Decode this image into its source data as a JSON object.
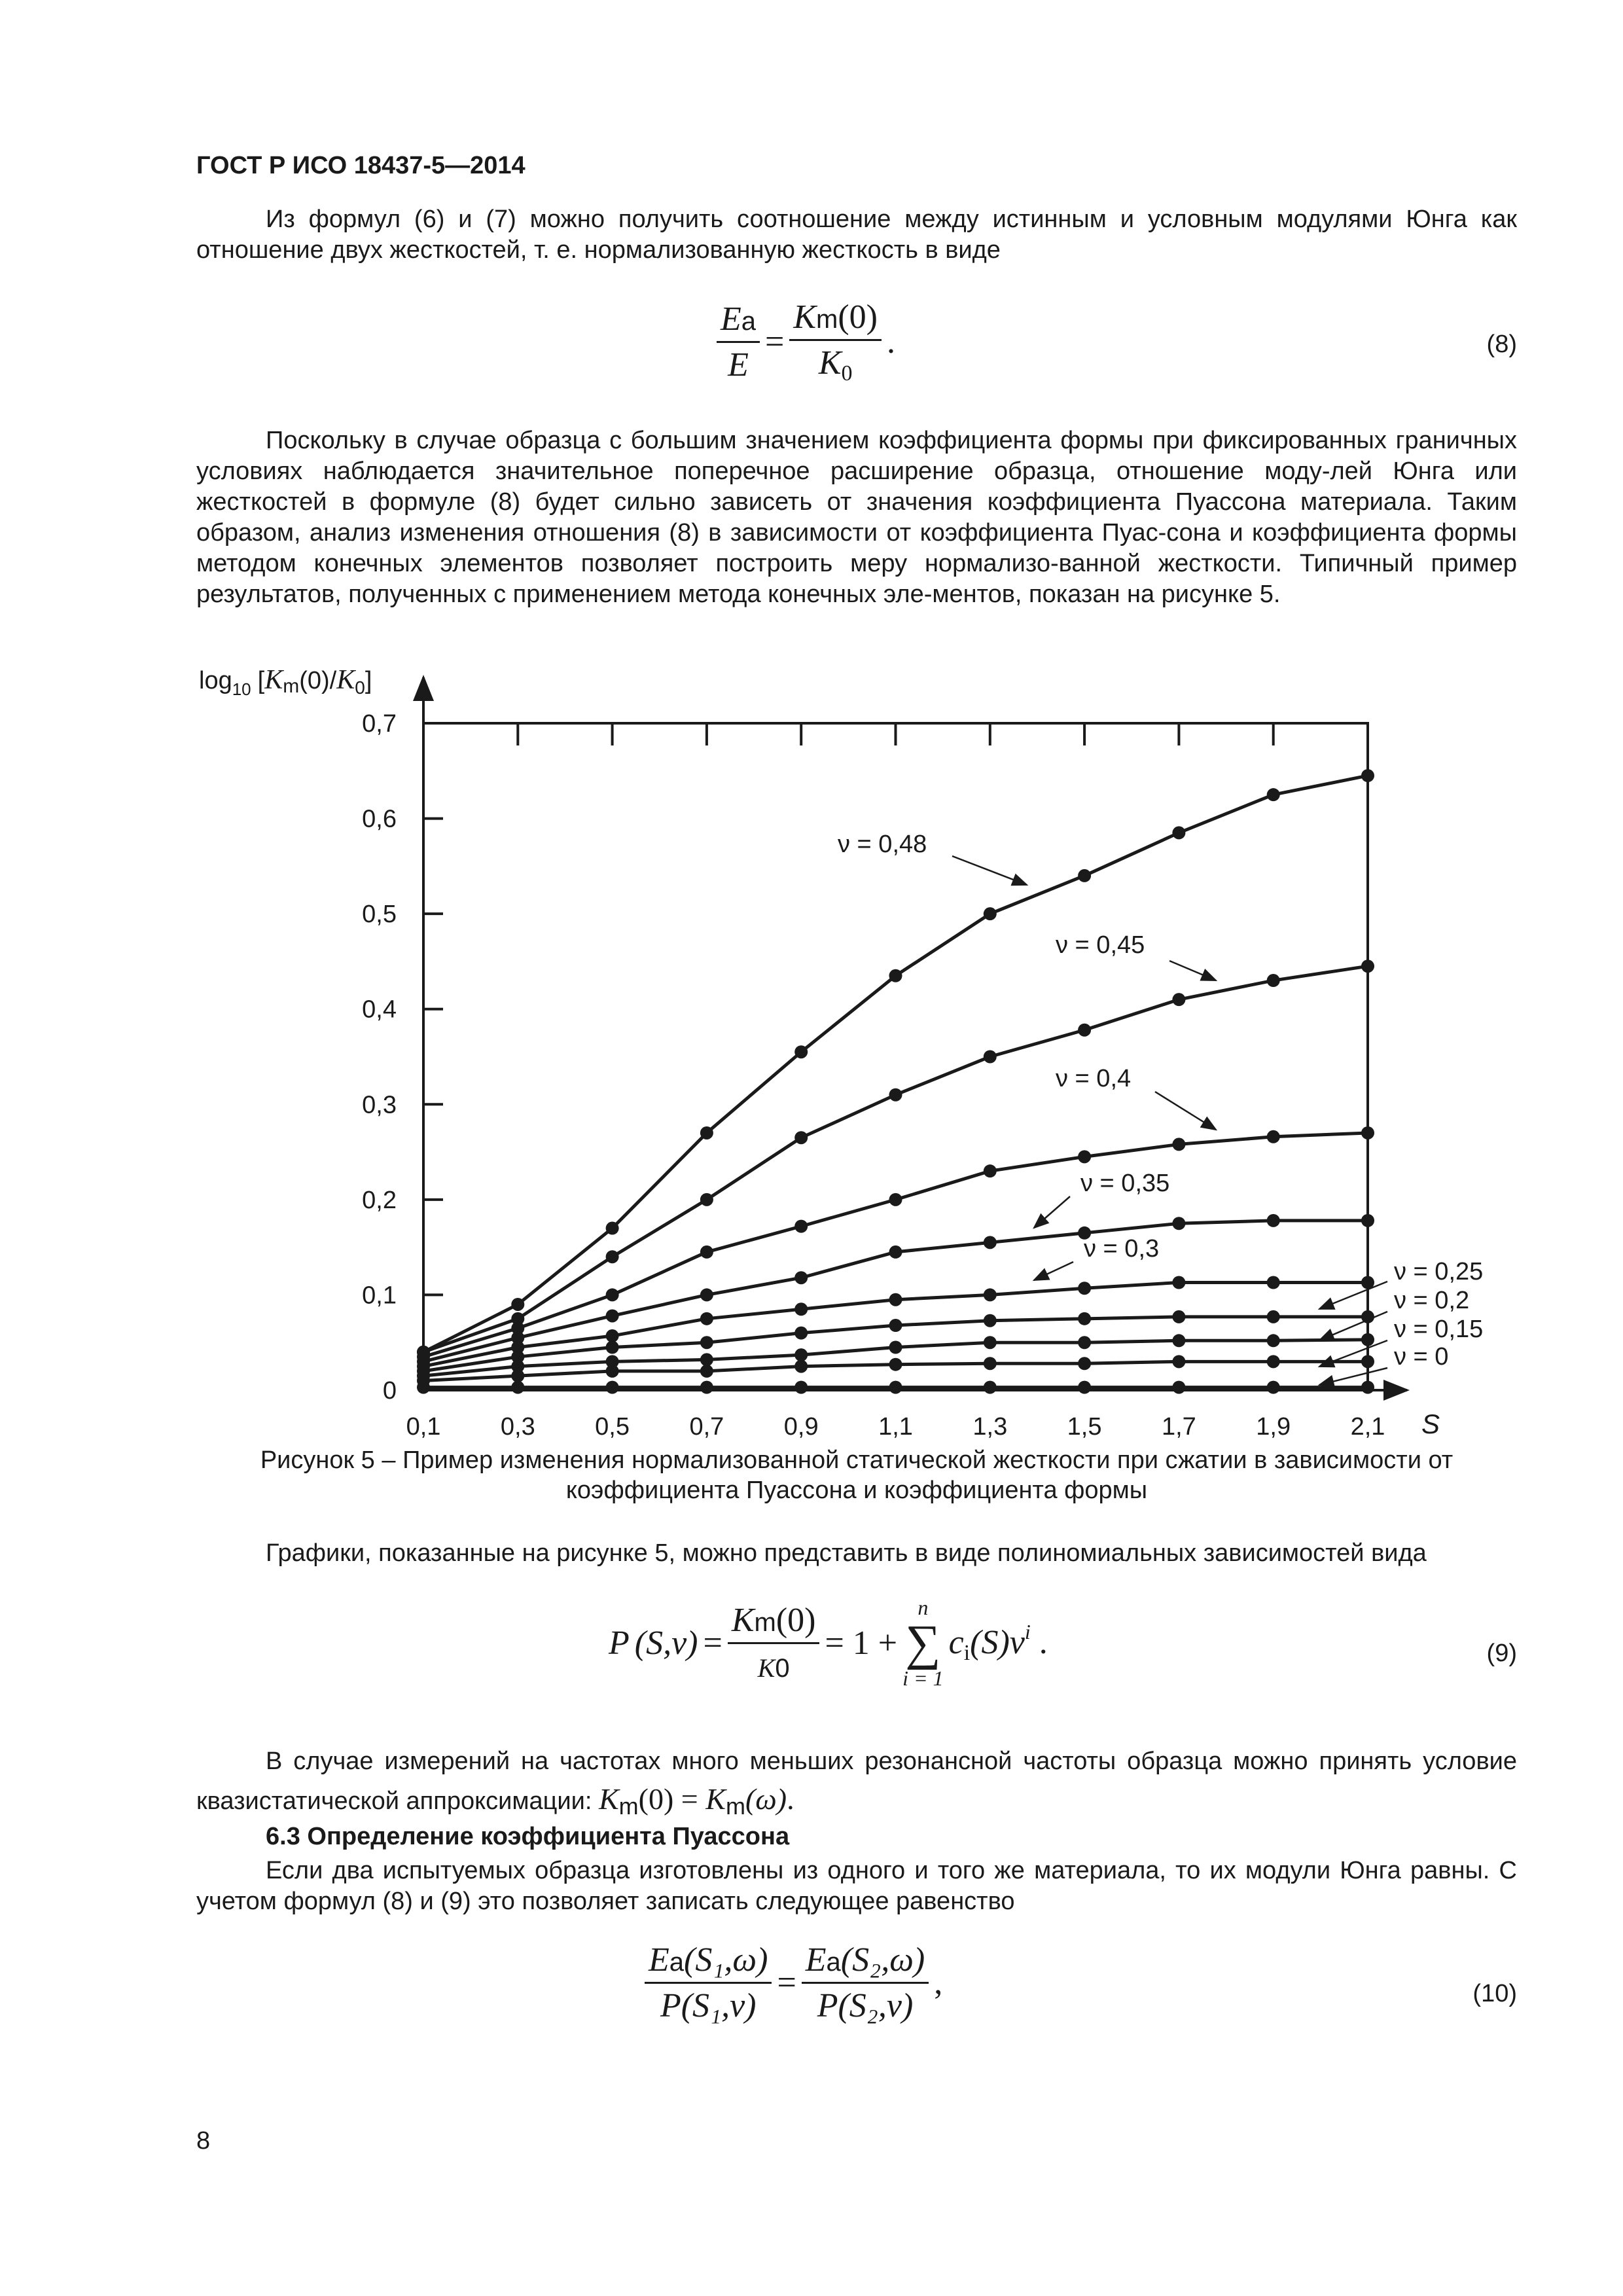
{
  "header": {
    "title": "ГОСТ Р ИСО 18437-5—2014"
  },
  "para1": "Из формул (6) и (7) можно получить соотношение между истинным и условным модулями Юнга как отношение двух жесткостей, т. е. нормализованную жесткость в виде",
  "formula8": {
    "lhs_num": "E",
    "lhs_num_sub": "a",
    "lhs_den": "E",
    "eq": "=",
    "rhs_num": "K",
    "rhs_num_sub": "m",
    "rhs_num_arg": "(0)",
    "rhs_den": "K",
    "rhs_den_sub": "0",
    "end": ".",
    "number": "(8)"
  },
  "para2": "Поскольку в случае образца с большим значением коэффициента формы при фиксированных граничных условиях наблюдается значительное поперечное расширение образца, отношение моду-лей Юнга или жесткостей в формуле (8) будет сильно зависеть от значения коэффициента Пуассона материала. Таким образом, анализ изменения отношения (8) в зависимости от коэффициента Пуас-сона и коэффициента формы методом конечных элементов позволяет построить меру нормализо-ванной жесткости. Типичный пример результатов, полученных с применением метода конечных эле-ментов, показан на рисунке 5.",
  "chart_data": {
    "type": "line",
    "ylabel": "log10 [Km(0)/K0]",
    "ylabel_parts": {
      "log": "log",
      "base": "10",
      "open": "[",
      "K": "K",
      "m": "m",
      "arg": "(0)/",
      "K2": "K",
      "zero": "0",
      "close": "]"
    },
    "xlabel": "S",
    "xlim": [
      0.1,
      2.1
    ],
    "ylim": [
      0,
      0.7
    ],
    "x": [
      0.1,
      0.3,
      0.5,
      0.7,
      0.9,
      1.1,
      1.3,
      1.5,
      1.7,
      1.9,
      2.1
    ],
    "x_tick_labels": [
      "0,1",
      "0,3",
      "0,5",
      "0,7",
      "0,9",
      "1,1",
      "1,3",
      "1,5",
      "1,7",
      "1,9",
      "2,1"
    ],
    "y_ticks": [
      0,
      0.1,
      0.2,
      0.3,
      0.4,
      0.5,
      0.6,
      0.7
    ],
    "y_tick_labels": [
      "0",
      "0,1",
      "0,2",
      "0,3",
      "0,4",
      "0,5",
      "0,6",
      "0,7"
    ],
    "grid": false,
    "markers": "filled-circle",
    "series": [
      {
        "name": "ν = 0,48",
        "values": [
          0.04,
          0.09,
          0.17,
          0.27,
          0.355,
          0.435,
          0.5,
          0.54,
          0.585,
          0.625,
          0.645
        ]
      },
      {
        "name": "ν = 0,45",
        "values": [
          0.04,
          0.075,
          0.14,
          0.2,
          0.265,
          0.31,
          0.35,
          0.378,
          0.41,
          0.43,
          0.445
        ]
      },
      {
        "name": "ν = 0,4",
        "values": [
          0.035,
          0.065,
          0.1,
          0.145,
          0.172,
          0.2,
          0.23,
          0.245,
          0.258,
          0.266,
          0.27
        ]
      },
      {
        "name": "ν = 0,35",
        "values": [
          0.03,
          0.055,
          0.078,
          0.1,
          0.118,
          0.145,
          0.155,
          0.165,
          0.175,
          0.178,
          0.178
        ]
      },
      {
        "name": "ν = 0,3",
        "values": [
          0.025,
          0.045,
          0.057,
          0.075,
          0.085,
          0.095,
          0.1,
          0.107,
          0.113,
          0.113,
          0.113
        ]
      },
      {
        "name": "ν = 0,25",
        "values": [
          0.02,
          0.035,
          0.045,
          0.05,
          0.06,
          0.068,
          0.073,
          0.075,
          0.077,
          0.077,
          0.077
        ]
      },
      {
        "name": "ν = 0,2",
        "values": [
          0.015,
          0.025,
          0.03,
          0.032,
          0.037,
          0.045,
          0.05,
          0.05,
          0.052,
          0.052,
          0.053
        ]
      },
      {
        "name": "ν = 0,15",
        "values": [
          0.01,
          0.015,
          0.02,
          0.02,
          0.025,
          0.027,
          0.028,
          0.028,
          0.03,
          0.03,
          0.03
        ]
      },
      {
        "name": "ν = 0",
        "values": [
          0.003,
          0.003,
          0.003,
          0.003,
          0.003,
          0.003,
          0.003,
          0.003,
          0.003,
          0.003,
          0.003
        ]
      }
    ]
  },
  "caption": {
    "line1": "Рисунок 5 – Пример изменения нормализованной статической жесткости при сжатии в зависимости от",
    "line2": "коэффициента Пуассона и коэффициента формы"
  },
  "para3": "Графики, показанные на рисунке 5, можно представить в виде полиномиальных зависимостей вида",
  "formula9": {
    "P": "P",
    "args": "(S,ν)",
    "eq": "=",
    "num": "K",
    "num_sub": "m",
    "num_arg": "(0)",
    "den": "K",
    "den_sup": "0",
    "eq2": "= 1 +",
    "sum_top": "n",
    "sum": "∑",
    "sum_bottom": "i = 1",
    "c": "c",
    "c_sub": "i",
    "c_arg": "(S)ν",
    "pow": "i",
    "end": ".",
    "number": "(9)"
  },
  "para4": {
    "text": "В случае измерений на частотах много меньших резонансной частоты образца можно принять условие квазистатической аппроксимации:",
    "K1": "K",
    "m1": "m",
    "a1": "(0) = ",
    "K2": "K",
    "m2": "m",
    "a2": "(ω)",
    "end": "."
  },
  "section": {
    "heading": "6.3 Определение коэффициента Пуассона"
  },
  "para5": "Если два испытуемых образца изготовлены из одного и того же материала, то их модули Юнга равны. С учетом формул (8) и (9) это позволяет записать следующее равенство",
  "formula10": {
    "E1": "E",
    "a1": "a",
    "arg1": "(S₁,ω)",
    "P1": "P(S₁,ν)",
    "eq": "=",
    "E2": "E",
    "a2": "a",
    "arg2": "(S₂,ω)",
    "P2": "P(S₂,ν)",
    "end": ",",
    "number": "(10)"
  },
  "footer": {
    "page_number": "8"
  }
}
